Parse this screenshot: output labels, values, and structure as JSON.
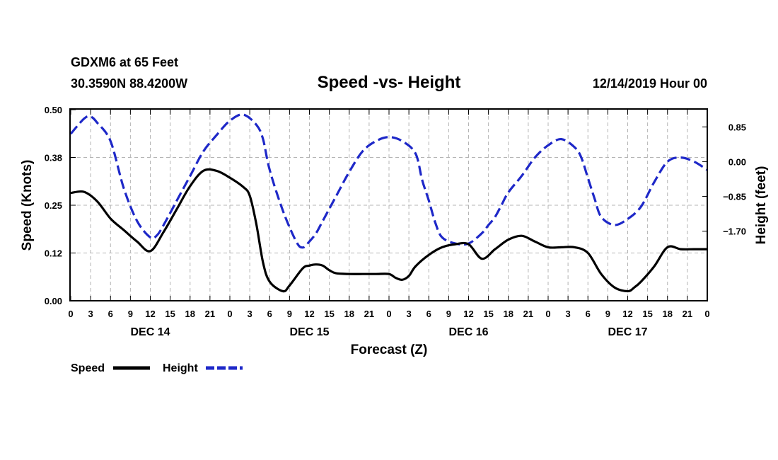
{
  "header": {
    "station": "GDXM6 at 65 Feet",
    "location": "30.3590N 88.4200W",
    "title": "Speed -vs- Height",
    "datetime": "12/14/2019 Hour 00"
  },
  "chart_data": {
    "type": "line",
    "title": "Speed -vs- Height",
    "xlabel": "Forecast (Z)",
    "ylabel": "Speed (Knots)",
    "y2label": "Height (feet)",
    "xlim": [
      0,
      96
    ],
    "ylim": [
      0,
      0.5
    ],
    "y2lim": [
      -3.4,
      1.27
    ],
    "x_ticks": [
      0,
      3,
      6,
      9,
      12,
      15,
      18,
      21,
      24,
      27,
      30,
      33,
      36,
      39,
      42,
      45,
      48,
      51,
      54,
      57,
      60,
      63,
      66,
      69,
      72,
      75,
      78,
      81,
      84,
      87,
      90,
      93,
      96
    ],
    "x_tick_labels": [
      "0",
      "3",
      "6",
      "9",
      "12",
      "15",
      "18",
      "21",
      "0",
      "3",
      "6",
      "9",
      "12",
      "15",
      "18",
      "21",
      "0",
      "3",
      "6",
      "9",
      "12",
      "15",
      "18",
      "21",
      "0",
      "3",
      "6",
      "9",
      "12",
      "15",
      "18",
      "21",
      "0"
    ],
    "day_labels": [
      {
        "label": "DEC 14",
        "hour": 12
      },
      {
        "label": "DEC 15",
        "hour": 36
      },
      {
        "label": "DEC 16",
        "hour": 60
      },
      {
        "label": "DEC 17",
        "hour": 84
      }
    ],
    "y_ticks": [
      0.0,
      0.125,
      0.25,
      0.375,
      0.5
    ],
    "y_tick_labels": [
      "0.00",
      "0.12",
      "0.25",
      "0.38",
      "0.50"
    ],
    "y2_ticks": [
      0.85,
      0.0,
      -0.85,
      -1.7
    ],
    "y2_tick_labels": [
      "0.85",
      "0.00",
      "−0.85",
      "−1.70"
    ],
    "grid": true,
    "series": [
      {
        "name": "Speed",
        "axis": "left",
        "color": "#000000",
        "style": "solid",
        "x": [
          0,
          2,
          4,
          6,
          8,
          10,
          12,
          14,
          16,
          18,
          20,
          22,
          24,
          26,
          27,
          28,
          29,
          30,
          32,
          33,
          35,
          36,
          37,
          38,
          39,
          40,
          42,
          44,
          46,
          48,
          49,
          50,
          51,
          52,
          54,
          56,
          58,
          60,
          62,
          64,
          66,
          68,
          70,
          72,
          74,
          76,
          78,
          80,
          82,
          84,
          85,
          86,
          88,
          90,
          92,
          94,
          96
        ],
        "y": [
          0.282,
          0.285,
          0.26,
          0.215,
          0.185,
          0.155,
          0.13,
          0.18,
          0.24,
          0.3,
          0.34,
          0.34,
          0.322,
          0.298,
          0.275,
          0.2,
          0.1,
          0.05,
          0.025,
          0.04,
          0.085,
          0.092,
          0.095,
          0.092,
          0.08,
          0.072,
          0.07,
          0.07,
          0.07,
          0.07,
          0.06,
          0.055,
          0.065,
          0.09,
          0.12,
          0.14,
          0.148,
          0.148,
          0.11,
          0.135,
          0.16,
          0.17,
          0.155,
          0.14,
          0.14,
          0.14,
          0.125,
          0.07,
          0.035,
          0.025,
          0.035,
          0.05,
          0.09,
          0.14,
          0.135,
          0.135,
          0.135
        ]
      },
      {
        "name": "Height",
        "axis": "right",
        "color": "#1e28c8",
        "style": "dashed",
        "x": [
          0,
          2,
          3,
          4,
          6,
          8,
          10,
          12,
          13,
          14,
          16,
          18,
          20,
          22,
          24,
          26,
          28,
          29,
          30,
          32,
          34,
          35,
          36,
          37,
          38,
          40,
          42,
          44,
          46,
          48,
          50,
          52,
          53,
          54,
          55,
          56,
          58,
          60,
          62,
          63,
          64,
          65,
          66,
          68,
          70,
          72,
          74,
          76,
          77,
          78,
          79,
          80,
          82,
          84,
          86,
          88,
          90,
          92,
          94,
          96
        ],
        "y": [
          0.68,
          1.05,
          1.1,
          0.95,
          0.5,
          -0.65,
          -1.45,
          -1.85,
          -1.8,
          -1.55,
          -0.95,
          -0.35,
          0.25,
          0.65,
          1.0,
          1.15,
          0.9,
          0.55,
          -0.2,
          -1.2,
          -1.95,
          -2.1,
          -1.95,
          -1.75,
          -1.45,
          -0.85,
          -0.25,
          0.25,
          0.5,
          0.6,
          0.5,
          0.2,
          -0.45,
          -0.95,
          -1.5,
          -1.85,
          -2.0,
          -2.0,
          -1.75,
          -1.55,
          -1.35,
          -1.05,
          -0.75,
          -0.35,
          0.1,
          0.4,
          0.55,
          0.35,
          0.1,
          -0.4,
          -0.9,
          -1.35,
          -1.55,
          -1.4,
          -1.1,
          -0.5,
          0.0,
          0.1,
          0.0,
          -0.2
        ]
      }
    ]
  },
  "legend": {
    "speed_label": "Speed",
    "height_label": "Height"
  }
}
